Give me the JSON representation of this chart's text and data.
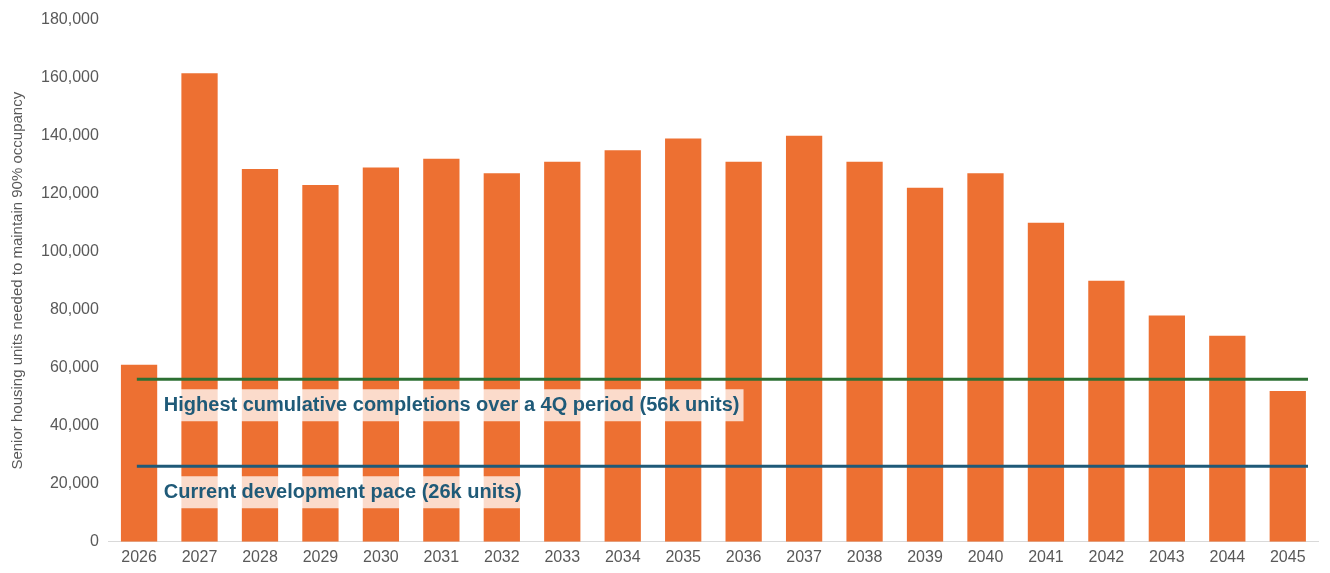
{
  "chart_data": {
    "type": "bar",
    "ylabel": "Senior housing units needed to maintain 90% occupancy",
    "categories": [
      "2026",
      "2027",
      "2028",
      "2029",
      "2030",
      "2031",
      "2032",
      "2033",
      "2034",
      "2035",
      "2036",
      "2037",
      "2038",
      "2039",
      "2040",
      "2041",
      "2042",
      "2043",
      "2044",
      "2045"
    ],
    "values": [
      61000,
      161500,
      128500,
      123000,
      129000,
      132000,
      127000,
      131000,
      135000,
      139000,
      131000,
      140000,
      131000,
      122000,
      127000,
      110000,
      90000,
      78000,
      71000,
      52000
    ],
    "color": "#ed7032",
    "ylim": [
      0,
      180000
    ],
    "yticks": [
      {
        "value": 0,
        "label": "0"
      },
      {
        "value": 20000,
        "label": "20,000"
      },
      {
        "value": 40000,
        "label": "40,000"
      },
      {
        "value": 60000,
        "label": "60,000"
      },
      {
        "value": 80000,
        "label": "80,000"
      },
      {
        "value": 100000,
        "label": "100,000"
      },
      {
        "value": 120000,
        "label": "120,000"
      },
      {
        "value": 140000,
        "label": "140,000"
      },
      {
        "value": 160000,
        "label": "160,000"
      },
      {
        "value": 180000,
        "label": "180,000"
      }
    ],
    "grid": false,
    "legend": false,
    "ref_lines": [
      {
        "axis": "y",
        "value": 56000,
        "label": "Highest cumulative completions over a 4Q period (56k units)",
        "color": "#2d7033"
      },
      {
        "axis": "y",
        "value": 26000,
        "label": "Current development pace (26k units)",
        "color": "#1f5a78"
      }
    ]
  }
}
